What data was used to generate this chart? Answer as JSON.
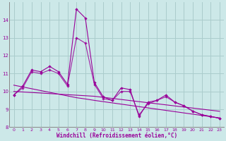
{
  "xlabel": "Windchill (Refroidissement éolien,°C)",
  "x": [
    0,
    1,
    2,
    3,
    4,
    5,
    6,
    7,
    8,
    9,
    10,
    11,
    12,
    13,
    14,
    15,
    16,
    17,
    18,
    19,
    20,
    21,
    22,
    23
  ],
  "line1": [
    9.8,
    10.3,
    11.2,
    11.1,
    11.4,
    11.1,
    10.4,
    14.6,
    14.1,
    10.5,
    9.7,
    9.5,
    10.2,
    10.1,
    8.6,
    9.4,
    9.5,
    9.8,
    9.4,
    9.2,
    8.9,
    8.7,
    8.6,
    8.5
  ],
  "line2": [
    9.8,
    10.2,
    11.1,
    11.0,
    11.2,
    11.0,
    10.3,
    13.0,
    12.7,
    10.4,
    9.6,
    9.5,
    10.0,
    10.0,
    8.7,
    9.3,
    9.5,
    9.7,
    9.4,
    9.2,
    8.9,
    8.7,
    8.6,
    8.5
  ],
  "trend1": [
    10.35,
    10.25,
    10.15,
    10.05,
    9.95,
    9.85,
    9.75,
    9.65,
    9.58,
    9.5,
    9.43,
    9.36,
    9.29,
    9.22,
    9.15,
    9.08,
    9.01,
    8.94,
    8.87,
    8.8,
    8.73,
    8.66,
    8.59,
    8.52
  ],
  "trend2": [
    10.0,
    9.97,
    9.94,
    9.91,
    9.88,
    9.85,
    9.82,
    9.79,
    9.76,
    9.73,
    9.67,
    9.61,
    9.55,
    9.49,
    9.43,
    9.37,
    9.31,
    9.25,
    9.19,
    9.13,
    9.07,
    9.01,
    8.95,
    8.89
  ],
  "line_color": "#990099",
  "bg_color": "#cce8e8",
  "grid_color": "#aacccc",
  "ylim": [
    8,
    15
  ],
  "xlim": [
    -0.5,
    23.5
  ],
  "yticks": [
    8,
    9,
    10,
    11,
    12,
    13,
    14
  ],
  "xticks": [
    0,
    1,
    2,
    3,
    4,
    5,
    6,
    7,
    8,
    9,
    10,
    11,
    12,
    13,
    14,
    15,
    16,
    17,
    18,
    19,
    20,
    21,
    22,
    23
  ]
}
